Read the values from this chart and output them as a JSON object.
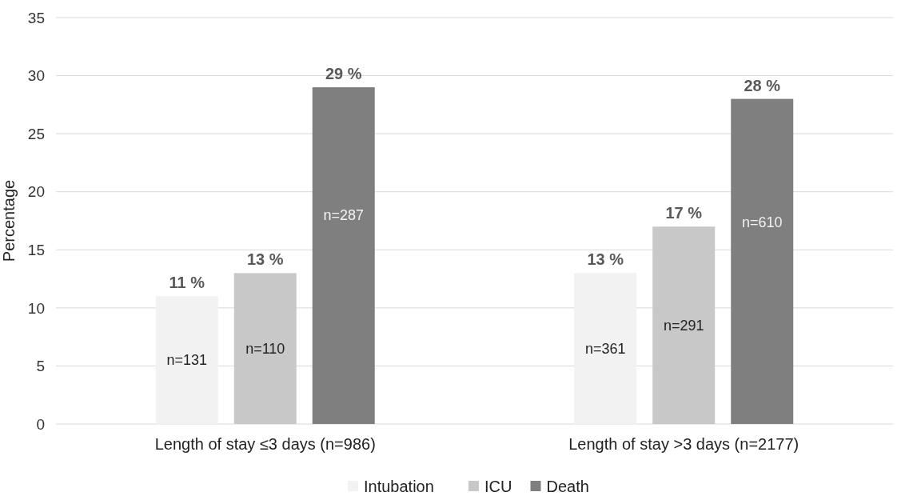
{
  "chart_data": {
    "type": "bar",
    "ylabel": "Percentage",
    "categories": [
      "Length of stay ≤3 days (n=986)",
      "Length of stay >3 days (n=2177)"
    ],
    "series": [
      {
        "name": "Intubation",
        "color": "#f2f2f2",
        "values": [
          11,
          13
        ],
        "value_labels": [
          "11 %",
          "13 %"
        ]
      },
      {
        "name": "ICU",
        "color": "#c8c8c8",
        "values": [
          13,
          17
        ],
        "value_labels": [
          "13 %",
          "17 %"
        ]
      },
      {
        "name": "Death",
        "color": "#7f7f7f",
        "values": [
          29,
          28
        ],
        "value_labels": [
          "29 %",
          "28 %"
        ]
      }
    ],
    "annotations": [
      "n=131",
      "n=110",
      "n=287",
      "n=361",
      "n=291",
      "n=610"
    ],
    "ylim": [
      0,
      35
    ],
    "yticks": [
      0,
      5,
      10,
      15,
      20,
      25,
      30,
      35
    ],
    "grid": "y",
    "legend": "bottom"
  }
}
